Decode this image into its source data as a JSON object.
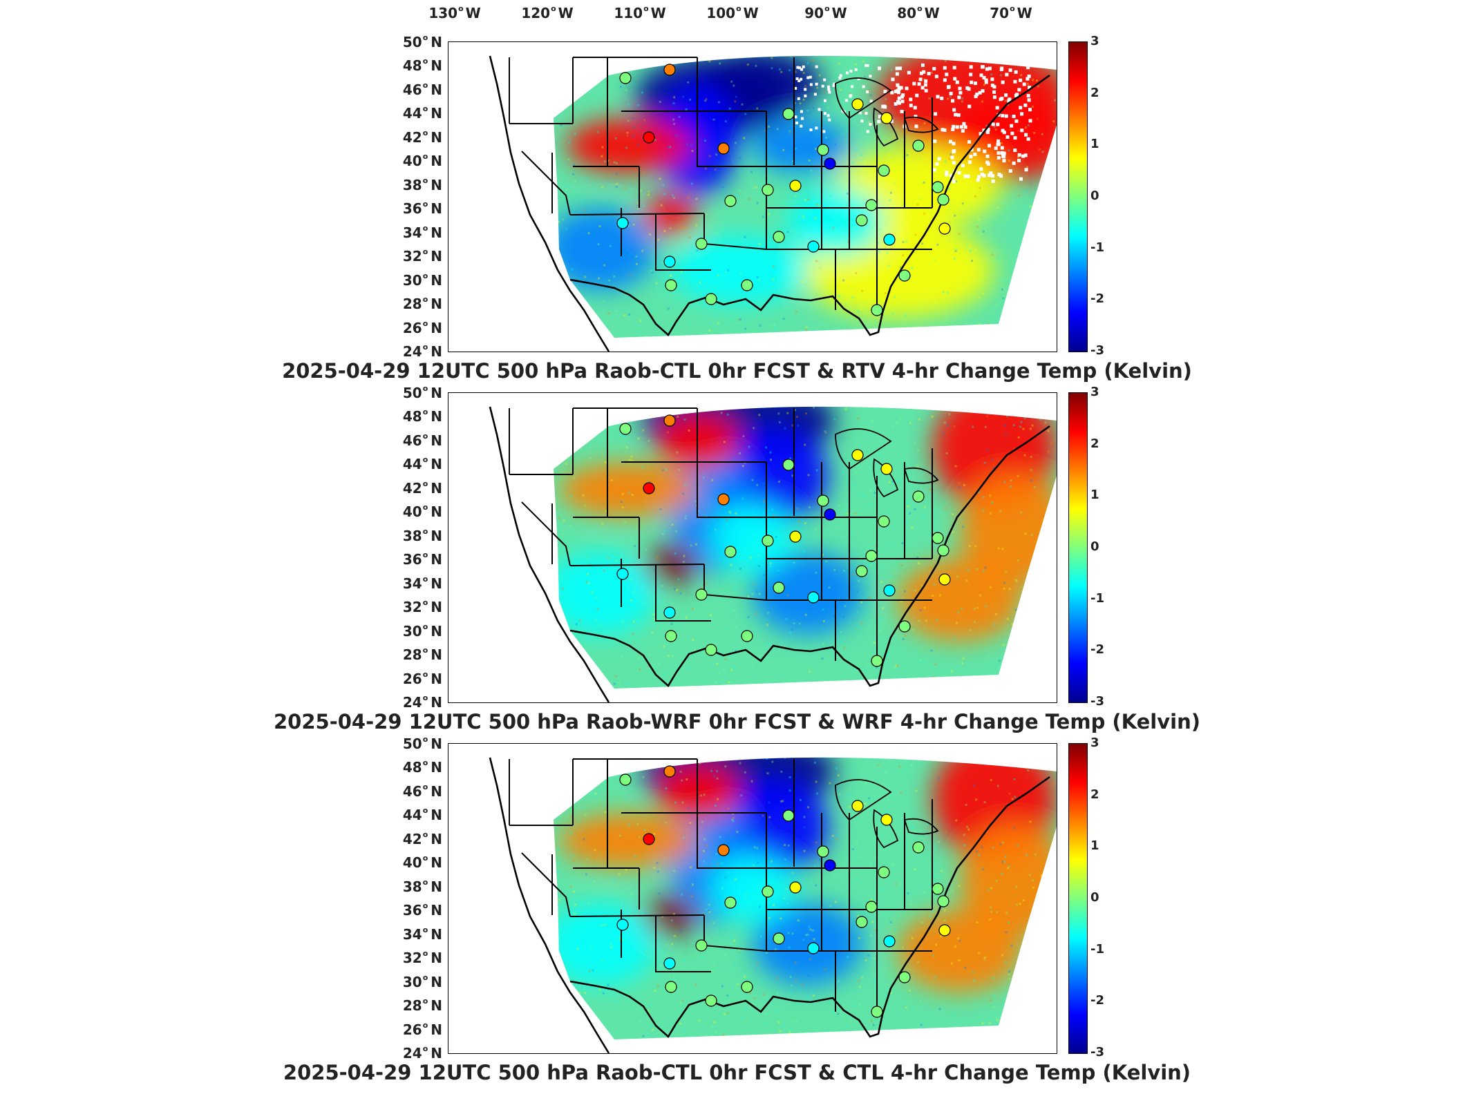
{
  "lon_labels": [
    "130",
    "120",
    "110",
    "100",
    "90",
    "80",
    "70"
  ],
  "lon_suffix": "W",
  "lat_labels": [
    "50",
    "48",
    "46",
    "44",
    "42",
    "40",
    "38",
    "36",
    "34",
    "32",
    "30",
    "28",
    "26",
    "24"
  ],
  "lat_suffix": "N",
  "colorbar": {
    "ticks": [
      "3",
      "2",
      "1",
      "0",
      "-1",
      "-2",
      "-3"
    ],
    "range": [
      -3,
      3
    ],
    "colormap": [
      "#00008f",
      "#0000ff",
      "#007fff",
      "#00ffff",
      "#7fff7f",
      "#ffff00",
      "#ff7f00",
      "#ff0000",
      "#7f0000"
    ]
  },
  "panels": [
    {
      "title": "2025-04-29 12UTC 500 hPa Raob-CTL 0hr FCST & RTV 4-hr Change Temp (Kelvin)"
    },
    {
      "title": "2025-04-29 12UTC 500 hPa Raob-WRF 0hr FCST & WRF 4-hr Change Temp (Kelvin)"
    },
    {
      "title": "2025-04-29 12UTC 500 hPa Raob-CTL 0hr FCST & CTL 4-hr Change Temp (Kelvin)"
    }
  ]
}
